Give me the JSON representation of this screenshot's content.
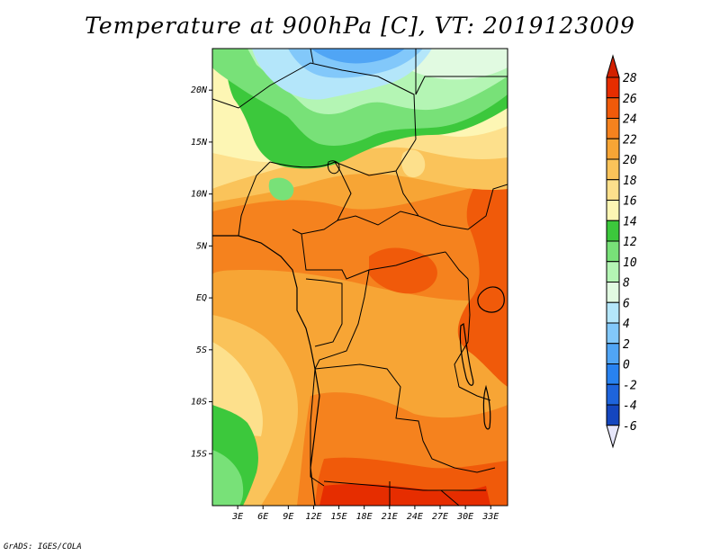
{
  "title": "Temperature at 900hPa [C], VT: 2019123009",
  "credit": "GrADS: IGES/COLA",
  "map": {
    "lon_range": [
      0,
      35
    ],
    "lat_range": [
      -20,
      24
    ],
    "lat_ticks": [
      {
        "label": "20N",
        "lat": 20
      },
      {
        "label": "15N",
        "lat": 15
      },
      {
        "label": "10N",
        "lat": 10
      },
      {
        "label": "5N",
        "lat": 5
      },
      {
        "label": "EQ",
        "lat": 0
      },
      {
        "label": "5S",
        "lat": -5
      },
      {
        "label": "10S",
        "lat": -10
      },
      {
        "label": "15S",
        "lat": -15
      }
    ],
    "lon_ticks": [
      {
        "label": "3E",
        "lon": 3
      },
      {
        "label": "6E",
        "lon": 6
      },
      {
        "label": "9E",
        "lon": 9
      },
      {
        "label": "12E",
        "lon": 12
      },
      {
        "label": "15E",
        "lon": 15
      },
      {
        "label": "18E",
        "lon": 18
      },
      {
        "label": "21E",
        "lon": 21
      },
      {
        "label": "24E",
        "lon": 24
      },
      {
        "label": "27E",
        "lon": 27
      },
      {
        "label": "30E",
        "lon": 30
      },
      {
        "label": "33E",
        "lon": 33
      }
    ]
  },
  "colorbar": {
    "levels": [
      {
        "label": "28",
        "color": "#e62d00"
      },
      {
        "label": "26",
        "color": "#f05a0a"
      },
      {
        "label": "24",
        "color": "#f5821e"
      },
      {
        "label": "22",
        "color": "#f7a535"
      },
      {
        "label": "20",
        "color": "#fac35a"
      },
      {
        "label": "18",
        "color": "#fde08c"
      },
      {
        "label": "16",
        "color": "#fdf6b4"
      },
      {
        "label": "14",
        "color": "#3cc83c"
      },
      {
        "label": "12",
        "color": "#78e178"
      },
      {
        "label": "10",
        "color": "#b4f5b4"
      },
      {
        "label": "8",
        "color": "#e1fae1"
      },
      {
        "label": "6",
        "color": "#b4e6fa"
      },
      {
        "label": "4",
        "color": "#82c8fa"
      },
      {
        "label": "2",
        "color": "#50a5f5"
      },
      {
        "label": "0",
        "color": "#2882f0"
      },
      {
        "label": "-2",
        "color": "#1e64dc"
      },
      {
        "label": "-4",
        "color": "#1446be"
      },
      {
        "label": "-6",
        "color": "#0a1e8c"
      }
    ],
    "top_color": "#d22000",
    "bottom_color": "#e6e6fa"
  }
}
